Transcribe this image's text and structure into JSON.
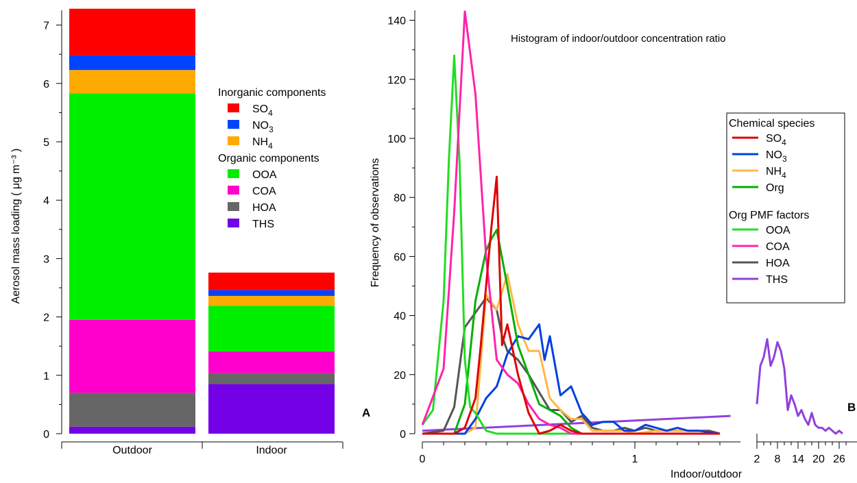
{
  "chart_data": [
    {
      "panel": "A",
      "type": "bar",
      "stacked": true,
      "categories": [
        "Outdoor",
        "Indoor"
      ],
      "ylabel": "Aerosol mass loading ( μg m⁻³ )",
      "ylim": [
        0,
        7.3
      ],
      "yticks": [
        0,
        1,
        2,
        3,
        4,
        5,
        6,
        7
      ],
      "legend": {
        "groups": [
          {
            "title": "Inorganic components",
            "items": [
              "SO₄",
              "NO₃",
              "NH₄"
            ]
          },
          {
            "title": "Organic components",
            "items": [
              "OOA",
              "COA",
              "HOA",
              "THS"
            ]
          }
        ]
      },
      "series": [
        {
          "name": "THS",
          "color": "#7300E6",
          "values": [
            0.12,
            0.85
          ]
        },
        {
          "name": "HOA",
          "color": "#666666",
          "values": [
            0.58,
            0.19
          ]
        },
        {
          "name": "COA",
          "color": "#FF00CC",
          "values": [
            1.25,
            0.37
          ]
        },
        {
          "name": "OOA",
          "color": "#00EE00",
          "values": [
            3.88,
            0.78
          ]
        },
        {
          "name": "NH₄",
          "color": "#FFAA00",
          "values": [
            0.4,
            0.17
          ]
        },
        {
          "name": "NO₃",
          "color": "#0044FF",
          "values": [
            0.25,
            0.1
          ]
        },
        {
          "name": "SO₄",
          "color": "#FF0000",
          "values": [
            0.8,
            0.3
          ]
        }
      ]
    },
    {
      "panel": "B",
      "type": "line",
      "title": "Histogram of indoor/outdoor concentration ratio",
      "xlabel": "Indoor/outdoor",
      "ylabel": "Frequency of observations",
      "ylim": [
        0,
        143
      ],
      "yticks": [
        0,
        20,
        40,
        60,
        80,
        100,
        120,
        140
      ],
      "main_axis": {
        "xlim": [
          0,
          1.45
        ],
        "xtick_labels": [
          0,
          1
        ]
      },
      "broken_axis": {
        "xlim": [
          2,
          27.5
        ],
        "xtick_labels": [
          2,
          8,
          14,
          20,
          26
        ]
      },
      "legend": {
        "groups": [
          {
            "title": "Chemical species",
            "items": [
              "SO₄",
              "NO₃",
              "NH₄",
              "Org"
            ]
          },
          {
            "title": "Org PMF factors",
            "items": [
              "OOA",
              "COA",
              "HOA",
              "THS"
            ]
          }
        ]
      },
      "series": [
        {
          "name": "SO₄",
          "color": "#E00000",
          "x": [
            0,
            0.05,
            0.1,
            0.15,
            0.2,
            0.25,
            0.275,
            0.3,
            0.325,
            0.35,
            0.375,
            0.4,
            0.45,
            0.5,
            0.55,
            0.6,
            0.65,
            0.7,
            0.75,
            0.8,
            0.85,
            0.9,
            1.0,
            1.1,
            1.2,
            1.3,
            1.4
          ],
          "y": [
            0,
            0,
            0,
            0,
            2,
            12,
            30,
            50,
            70,
            87,
            30,
            37,
            20,
            7,
            0,
            1,
            3,
            1,
            0,
            0,
            0,
            0,
            0,
            0,
            0,
            0,
            0
          ]
        },
        {
          "name": "NO₃",
          "color": "#0040E0",
          "x": [
            0,
            0.15,
            0.2,
            0.25,
            0.3,
            0.35,
            0.4,
            0.45,
            0.5,
            0.55,
            0.575,
            0.6,
            0.65,
            0.7,
            0.75,
            0.8,
            0.85,
            0.9,
            0.95,
            1.0,
            1.05,
            1.1,
            1.15,
            1.2,
            1.25,
            1.3,
            1.4
          ],
          "y": [
            0,
            0,
            0,
            5,
            12,
            16,
            27,
            33,
            32,
            37,
            25,
            33,
            13,
            16,
            7,
            3,
            4,
            4,
            1,
            1,
            3,
            2,
            1,
            2,
            1,
            1,
            0
          ]
        },
        {
          "name": "NH₄",
          "color": "#FFB844",
          "x": [
            0,
            0.15,
            0.2,
            0.25,
            0.3,
            0.35,
            0.4,
            0.45,
            0.5,
            0.55,
            0.6,
            0.65,
            0.7,
            0.75,
            0.8,
            0.85,
            0.9,
            0.95,
            1.0,
            1.1,
            1.2,
            1.3,
            1.4
          ],
          "y": [
            0,
            0,
            0,
            2,
            47,
            42,
            54,
            37,
            28,
            28,
            12,
            8,
            5,
            5,
            1,
            1,
            1,
            1,
            0,
            1,
            1,
            1,
            0
          ]
        },
        {
          "name": "Org",
          "color": "#00B000",
          "x": [
            0,
            0.1,
            0.15,
            0.2,
            0.25,
            0.3,
            0.325,
            0.35,
            0.4,
            0.45,
            0.5,
            0.55,
            0.6,
            0.65,
            0.7,
            0.75,
            0.8,
            0.85,
            0.9,
            1.0,
            1.1,
            1.2,
            1.3,
            1.4
          ],
          "y": [
            0,
            0,
            0,
            10,
            45,
            62,
            66,
            69,
            50,
            30,
            20,
            10,
            8,
            6,
            2,
            0,
            0,
            0,
            0,
            0,
            0,
            0,
            0,
            0
          ]
        },
        {
          "name": "OOA",
          "color": "#22DD22",
          "x": [
            0,
            0.05,
            0.1,
            0.125,
            0.15,
            0.175,
            0.2,
            0.225,
            0.25,
            0.3,
            0.35,
            0.4,
            0.45,
            0.5,
            0.6,
            0.7,
            0.8,
            0.9,
            1.0,
            1.2,
            1.4
          ],
          "y": [
            3,
            8,
            45,
            93,
            128,
            92,
            25,
            9,
            7,
            1,
            0,
            0,
            0,
            0,
            0,
            0,
            0,
            0,
            0,
            0,
            0
          ]
        },
        {
          "name": "COA",
          "color": "#FF22AA",
          "x": [
            0,
            0.1,
            0.15,
            0.2,
            0.25,
            0.3,
            0.35,
            0.4,
            0.45,
            0.5,
            0.55,
            0.6,
            0.65,
            0.7,
            0.75,
            0.8,
            0.9,
            1.0,
            1.2,
            1.4
          ],
          "y": [
            3,
            22,
            75,
            143,
            115,
            60,
            25,
            20,
            17,
            10,
            5,
            3,
            2,
            0,
            0,
            0,
            0,
            0,
            0,
            0
          ]
        },
        {
          "name": "HOA",
          "color": "#555555",
          "x": [
            0,
            0.1,
            0.15,
            0.2,
            0.25,
            0.3,
            0.35,
            0.375,
            0.4,
            0.45,
            0.5,
            0.55,
            0.6,
            0.65,
            0.7,
            0.75,
            0.8,
            0.85,
            0.9,
            0.95,
            1.0,
            1.05,
            1.1,
            1.15,
            1.2,
            1.25,
            1.3,
            1.35,
            1.4
          ],
          "y": [
            0,
            1,
            9,
            36,
            41,
            46,
            42,
            33,
            28,
            25,
            20,
            14,
            8,
            8,
            4,
            6,
            2,
            1,
            1,
            2,
            1,
            2,
            1,
            1,
            1,
            1,
            1,
            1,
            0
          ]
        },
        {
          "name": "THS",
          "color": "#9040DD",
          "x": [
            0,
            1.45
          ],
          "y": [
            1,
            6
          ]
        }
      ],
      "ths_broken_axis": {
        "x": [
          2,
          3,
          4,
          5,
          6,
          7,
          8,
          9,
          10,
          11,
          12,
          13,
          14,
          15,
          16,
          17,
          18,
          19,
          20,
          21,
          22,
          23,
          24,
          25,
          26,
          27
        ],
        "y": [
          10,
          23,
          26,
          32,
          23,
          26,
          31,
          28,
          22,
          8,
          13,
          10,
          6,
          8,
          5,
          3,
          7,
          3,
          2,
          2,
          1,
          2,
          1,
          0,
          1,
          0
        ]
      }
    }
  ],
  "panel_labels": {
    "a": "A",
    "b": "B"
  }
}
